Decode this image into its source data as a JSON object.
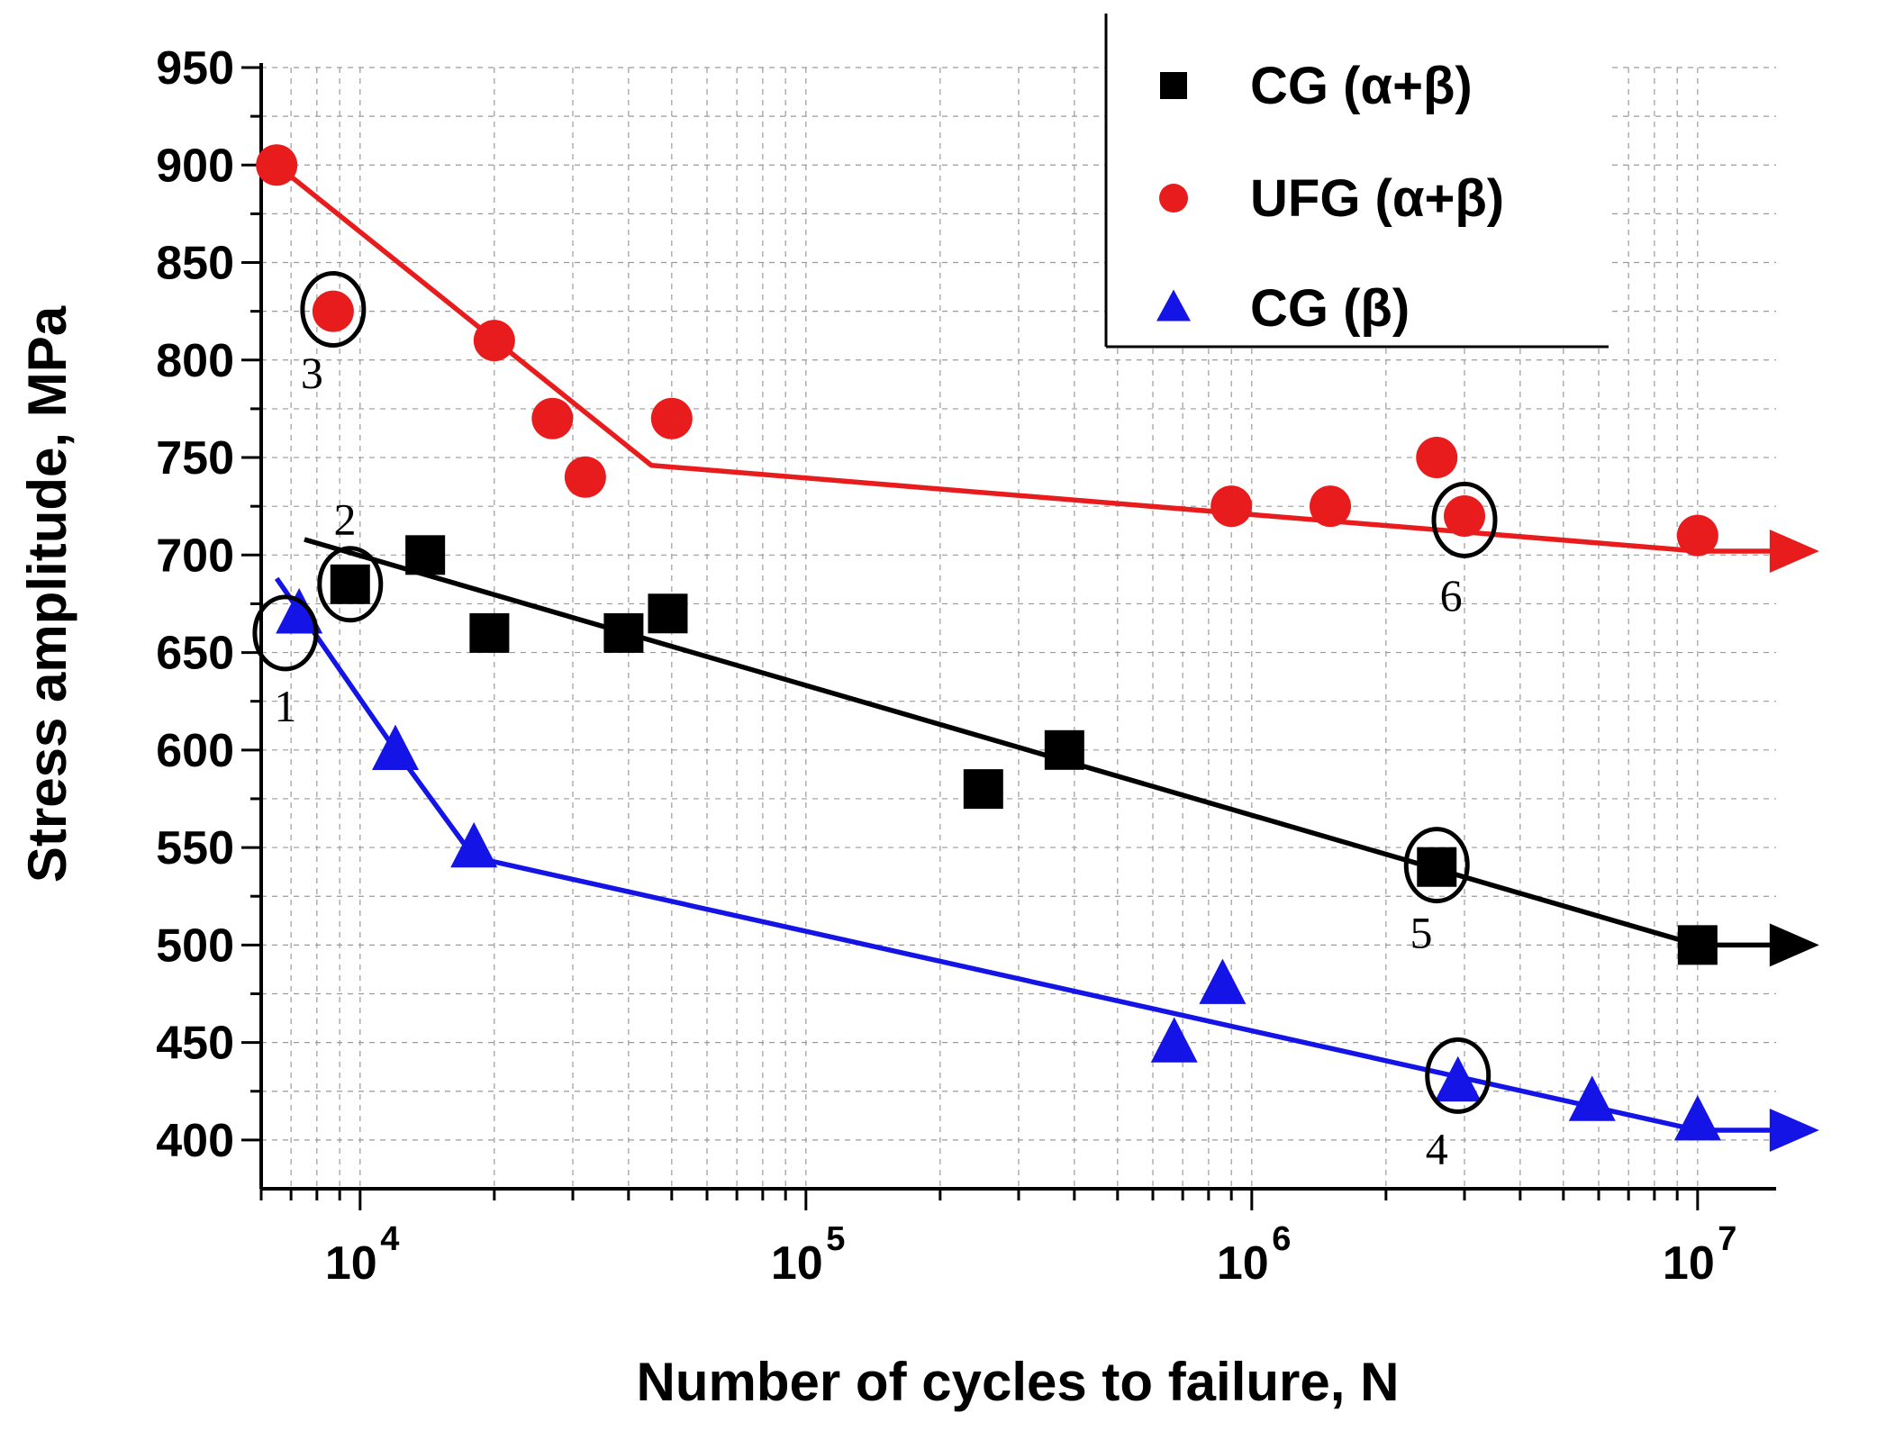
{
  "chart_data": {
    "type": "scatter",
    "xscale": "log",
    "xlabel": "Number of cycles to failure, N",
    "ylabel": "Stress amplitude, MPa",
    "xlim": [
      6000,
      15000000
    ],
    "ylim": [
      375,
      950
    ],
    "yticks": [
      400,
      450,
      500,
      550,
      600,
      650,
      700,
      750,
      800,
      850,
      900,
      950
    ],
    "xticks": [
      {
        "value": 10000,
        "base": "10",
        "exp": "4"
      },
      {
        "value": 100000,
        "base": "10",
        "exp": "5"
      },
      {
        "value": 1000000,
        "base": "10",
        "exp": "6"
      },
      {
        "value": 10000000,
        "base": "10",
        "exp": "7"
      }
    ],
    "grid": true,
    "legend_position": "top-right",
    "series": [
      {
        "name": "CG",
        "name_suffix": "(α+β)",
        "marker": "square",
        "color": "#000000",
        "points": [
          [
            9500,
            685
          ],
          [
            14000,
            700
          ],
          [
            19500,
            660
          ],
          [
            39000,
            660
          ],
          [
            49000,
            670
          ],
          [
            250000,
            580
          ],
          [
            380000,
            600
          ],
          [
            2600000,
            540
          ],
          [
            10000000,
            500
          ]
        ],
        "fit": [
          [
            7500,
            708
          ],
          [
            10000000,
            500
          ]
        ],
        "runout_arrow": true
      },
      {
        "name": "UFG",
        "name_suffix": "(α+β)",
        "marker": "circle",
        "color": "#e81c1c",
        "points": [
          [
            6500,
            900
          ],
          [
            8700,
            825
          ],
          [
            20000,
            810
          ],
          [
            27000,
            770
          ],
          [
            32000,
            740
          ],
          [
            50000,
            770
          ],
          [
            900000,
            725
          ],
          [
            1500000,
            725
          ],
          [
            2600000,
            750
          ],
          [
            3000000,
            720
          ],
          [
            10000000,
            710
          ]
        ],
        "fit": [
          [
            6500,
            900
          ],
          [
            45000,
            746
          ],
          [
            10000000,
            702
          ]
        ],
        "runout_arrow": true
      },
      {
        "name": "CG",
        "name_suffix": "(β)",
        "marker": "triangle",
        "color": "#1414e6",
        "points": [
          [
            7300,
            670
          ],
          [
            12000,
            600
          ],
          [
            18000,
            550
          ],
          [
            670000,
            450
          ],
          [
            860000,
            480
          ],
          [
            2900000,
            430
          ],
          [
            5800000,
            420
          ],
          [
            10000000,
            410
          ]
        ],
        "fit": [
          [
            6500,
            688
          ],
          [
            12000,
            600
          ],
          [
            18000,
            545
          ],
          [
            10000000,
            405
          ]
        ],
        "runout_arrow": true
      }
    ],
    "annotations": [
      {
        "label": "1",
        "circle_at": [
          6800,
          660
        ],
        "text_at": [
          6800,
          622
        ]
      },
      {
        "label": "2",
        "circle_at": [
          9500,
          685
        ],
        "text_at": [
          9250,
          718
        ]
      },
      {
        "label": "3",
        "circle_at": [
          8700,
          826
        ],
        "text_at": [
          7800,
          793
        ]
      },
      {
        "label": "4",
        "circle_at": [
          2900000,
          433
        ],
        "text_at": [
          2600000,
          395
        ]
      },
      {
        "label": "5",
        "circle_at": [
          2600000,
          541
        ],
        "text_at": [
          2400000,
          506
        ]
      },
      {
        "label": "6",
        "circle_at": [
          3000000,
          718
        ],
        "text_at": [
          2800000,
          679
        ]
      }
    ]
  }
}
